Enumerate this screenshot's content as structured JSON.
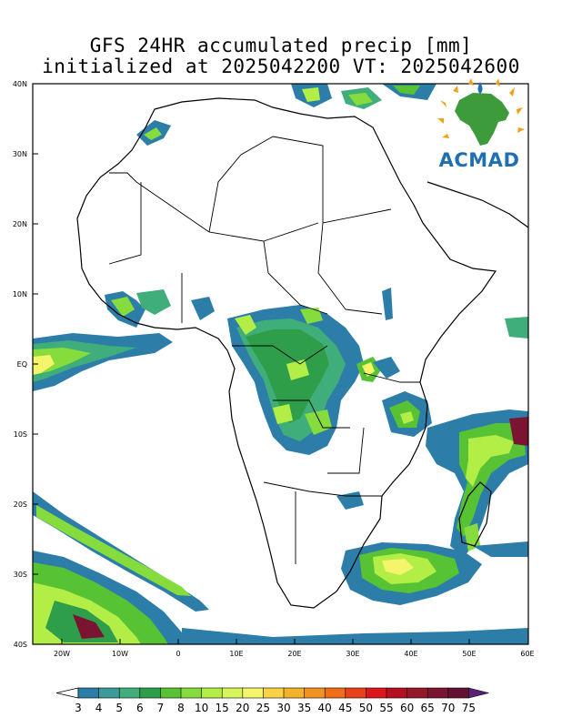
{
  "title_line1": "GFS 24HR accumulated precip [mm]",
  "title_line2": "initialized at 2025042200 VT: 2025042600",
  "logo_text": "ACMAD",
  "lat_labels": [
    "40N",
    "30N",
    "20N",
    "10N",
    "EQ",
    "10S",
    "20S",
    "30S",
    "40S"
  ],
  "lon_labels": [
    "20W",
    "10W",
    "0",
    "10E",
    "20E",
    "30E",
    "40E",
    "50E",
    "60E"
  ],
  "colorbar": {
    "labels": [
      "3",
      "4",
      "5",
      "6",
      "7",
      "8",
      "10",
      "15",
      "20",
      "25",
      "30",
      "35",
      "40",
      "45",
      "50",
      "55",
      "60",
      "65",
      "70",
      "75"
    ],
    "colors": [
      "#2c7ea8",
      "#3b9a9a",
      "#3fae7a",
      "#2f9e4a",
      "#58c235",
      "#86dc3c",
      "#b2ee45",
      "#d7f55b",
      "#f4f56a",
      "#f9d246",
      "#f4b12a",
      "#f29321",
      "#ef6d17",
      "#e9411b",
      "#db161c",
      "#b60f1e",
      "#951828",
      "#7a1430",
      "#641032",
      "#5b1f74"
    ]
  },
  "precip_colors": {
    "light": "#2c7ea8",
    "moderate": "#3fae7a",
    "green": "#58c235",
    "lime": "#b2ee45",
    "yellow": "#f4f56a",
    "dark": "#7a1430"
  }
}
